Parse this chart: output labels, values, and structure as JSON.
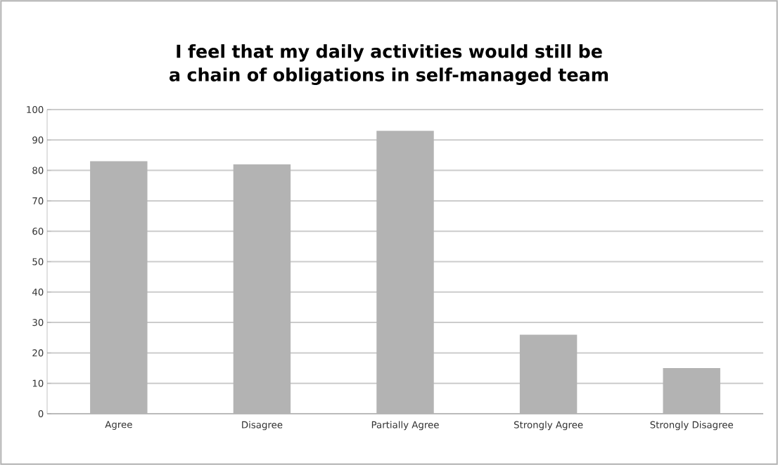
{
  "chart_data": {
    "type": "bar",
    "title": "I feel that my daily activities would still be a chain of obligations in self-managed team",
    "categories": [
      "Agree",
      "Disagree",
      "Partially Agree",
      "Strongly Agree",
      "Strongly Disagree"
    ],
    "values": [
      83,
      82,
      93,
      26,
      15
    ],
    "color": "#b3b3b3",
    "ylim": [
      0,
      100
    ],
    "yticks": [
      0,
      10,
      20,
      30,
      40,
      50,
      60,
      70,
      80,
      90,
      100
    ],
    "grid": "y"
  }
}
